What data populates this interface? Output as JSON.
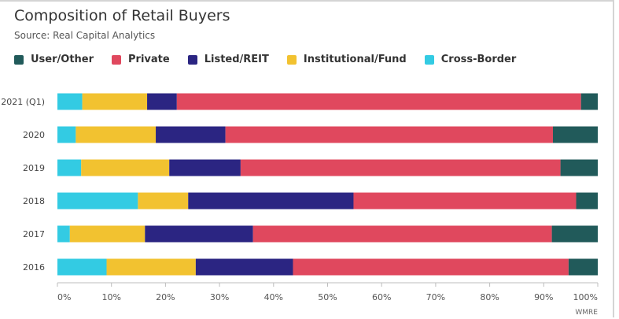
{
  "chart_data": {
    "type": "bar",
    "orientation": "horizontal",
    "stacked": true,
    "percent": true,
    "title": "Composition of Retail Buyers",
    "subtitle": "Source: Real Capital Analytics",
    "credit": "WMRE",
    "categories": [
      "2021 (Q1)",
      "2020",
      "2019",
      "2018",
      "2017",
      "2016"
    ],
    "series": [
      {
        "name": "Cross-Border",
        "color": "#33cbe3",
        "values": [
          4.6,
          3.4,
          4.4,
          14.9,
          2.3,
          9.1
        ]
      },
      {
        "name": "Institutional/Fund",
        "color": "#f2c230",
        "values": [
          12.0,
          14.8,
          16.3,
          9.3,
          13.9,
          16.5
        ]
      },
      {
        "name": "Listed/REIT",
        "color": "#2b2582",
        "values": [
          5.5,
          12.9,
          13.2,
          30.6,
          20.0,
          18.0
        ]
      },
      {
        "name": "Private",
        "color": "#e0485e",
        "values": [
          74.8,
          60.6,
          59.2,
          41.2,
          55.3,
          51.0
        ]
      },
      {
        "name": "User/Other",
        "color": "#215a5a",
        "values": [
          3.1,
          8.3,
          6.9,
          4.0,
          8.5,
          5.4
        ]
      }
    ],
    "legend_order": [
      "User/Other",
      "Private",
      "Listed/REIT",
      "Institutional/Fund",
      "Cross-Border"
    ],
    "xlim": [
      0,
      100
    ],
    "xticks": [
      "0%",
      "10%",
      "20%",
      "30%",
      "40%",
      "50%",
      "60%",
      "70%",
      "80%",
      "90%",
      "100%"
    ],
    "grid": false,
    "legend_position": "top-left"
  }
}
